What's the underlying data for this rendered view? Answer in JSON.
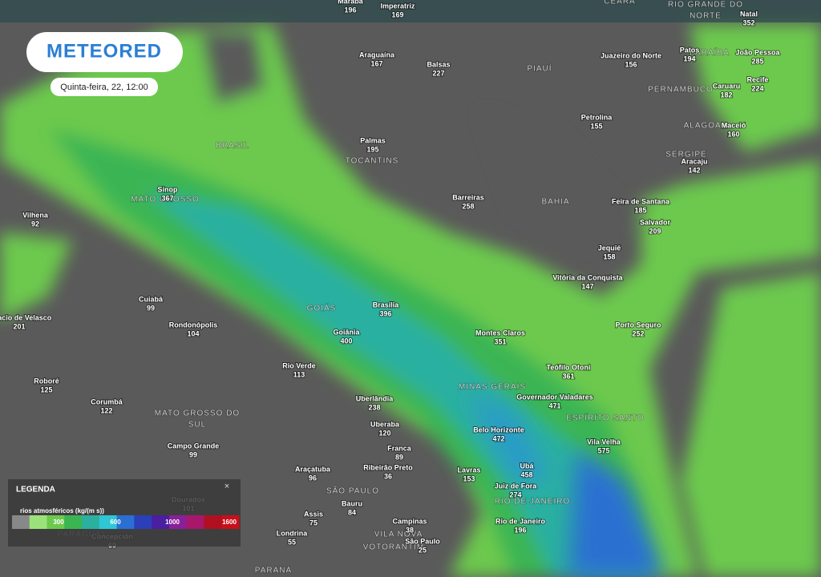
{
  "header": {
    "logo": "METEORED",
    "date": "Quinta-feira, 22, 12:00"
  },
  "regions": [
    [
      "BRASIL"
    ],
    [
      "MATO GROSSO"
    ],
    [
      "TOCANTINS"
    ],
    [
      "PIAUÍ"
    ],
    [
      "PERNAMBUCO"
    ],
    [
      "ALAGOAS"
    ],
    [
      "SERGIPE"
    ],
    [
      "BAHIA"
    ],
    [
      "GOIÁS"
    ],
    [
      "MINAS GERAIS"
    ],
    [
      "ESPÍRITO SANTO"
    ],
    [
      "MATO GROSSO DO",
      "SUL"
    ],
    [
      "SÃO PAULO"
    ],
    [
      "RIO DE JANEIRO"
    ],
    [
      "VILA NOVA"
    ],
    [
      "VOTORANTIM"
    ],
    [
      "PARAGUAI"
    ],
    [
      "PARANÁ"
    ],
    [
      "CEARÁ"
    ],
    [
      "RIO GRANDE DO",
      "NORTE"
    ],
    [
      "PARAÍBA"
    ]
  ],
  "cities": [
    {
      "name": "Marabá",
      "value": 196
    },
    {
      "name": "Imperatriz",
      "value": 169
    },
    {
      "name": "Araguaína",
      "value": 167
    },
    {
      "name": "Balsas",
      "value": 227
    },
    {
      "name": "Juazeiro do Norte",
      "value": 156
    },
    {
      "name": "Patos",
      "value": 194
    },
    {
      "name": "João Pessoa",
      "value": 285
    },
    {
      "name": "Natal",
      "value": 352
    },
    {
      "name": "Recife",
      "value": 224
    },
    {
      "name": "Caruaru",
      "value": 182
    },
    {
      "name": "Maceió",
      "value": 160
    },
    {
      "name": "Aracaju",
      "value": 142
    },
    {
      "name": "Petrolina",
      "value": 155
    },
    {
      "name": "Palmas",
      "value": 195
    },
    {
      "name": "Sinop",
      "value": 367
    },
    {
      "name": "Vilhena",
      "value": 92
    },
    {
      "name": "Barreiras",
      "value": 258
    },
    {
      "name": "Feira de Santana",
      "value": 185
    },
    {
      "name": "Salvador",
      "value": 209
    },
    {
      "name": "Jequié",
      "value": 158
    },
    {
      "name": "Vitória da Conquista",
      "value": 147
    },
    {
      "name": "Cuiabá",
      "value": 99
    },
    {
      "name": "Ignacio de Velasco",
      "value": 201
    },
    {
      "name": "Brasília",
      "value": 396
    },
    {
      "name": "Rondonópolis",
      "value": 104
    },
    {
      "name": "Goiânia",
      "value": 400
    },
    {
      "name": "Montes Claros",
      "value": 351
    },
    {
      "name": "Porto Seguro",
      "value": 252
    },
    {
      "name": "Rio Verde",
      "value": 113
    },
    {
      "name": "Teófilo Otoni",
      "value": 361
    },
    {
      "name": "Roboré",
      "value": 125
    },
    {
      "name": "Corumbá",
      "value": 122
    },
    {
      "name": "Uberlândia",
      "value": 238
    },
    {
      "name": "Governador Valadares",
      "value": 471
    },
    {
      "name": "Uberaba",
      "value": 120
    },
    {
      "name": "Belo Horizonte",
      "value": 472
    },
    {
      "name": "Vila Velha",
      "value": 575
    },
    {
      "name": "Campo Grande",
      "value": 99
    },
    {
      "name": "Franca",
      "value": 89
    },
    {
      "name": "Araçatuba",
      "value": 96
    },
    {
      "name": "Ribeirão Preto",
      "value": 36
    },
    {
      "name": "Lavras",
      "value": 153
    },
    {
      "name": "Ubá",
      "value": 458
    },
    {
      "name": "Juiz de Fora",
      "value": 274
    },
    {
      "name": "Dourados",
      "value": 101
    },
    {
      "name": "Assis",
      "value": 75
    },
    {
      "name": "Bauru",
      "value": 84
    },
    {
      "name": "Rio de Janeiro",
      "value": 196
    },
    {
      "name": "Campinas",
      "value": 38
    },
    {
      "name": "Londrina",
      "value": 55
    },
    {
      "name": "Concepción",
      "value": 69
    },
    {
      "name": "São Paulo",
      "value": 25
    }
  ],
  "legend": {
    "title": "LEGENDA",
    "close": "×",
    "label": "rios atmosféricos (kg/(m s))",
    "ticks": [
      300,
      600,
      1000,
      1600
    ]
  }
}
